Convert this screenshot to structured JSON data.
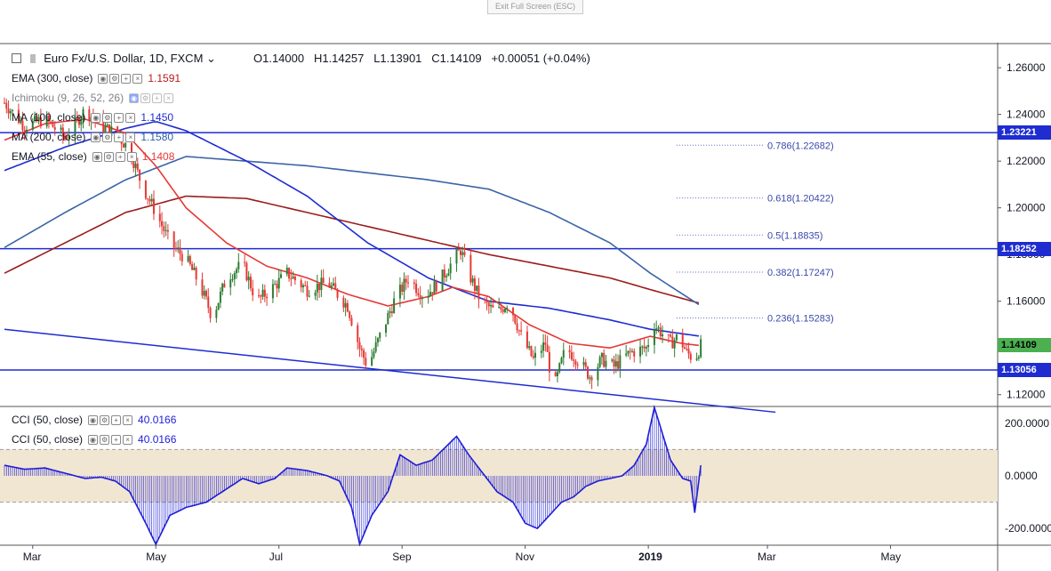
{
  "toolbar": {
    "exit_label": "Exit Full Screen (ESC)"
  },
  "symbol": {
    "title": "Euro Fx/U.S. Dollar, 1D, FXCM",
    "open": "O1.14000",
    "high": "H1.14257",
    "low": "L1.13901",
    "close": "C1.14109",
    "change": "+0.00051 (+0.04%)"
  },
  "indicators": [
    {
      "name": "EMA (300, close)",
      "value": "1.1591",
      "color": "#b71c1c"
    },
    {
      "name": "Ichimoku (9, 26, 52, 26)",
      "value": "",
      "color": "#2962ff"
    },
    {
      "name": "MA (100, close)",
      "value": "1.1450",
      "color": "#1e2cd0"
    },
    {
      "name": "MA (200, close)",
      "value": "1.1580",
      "color": "#2e5fa8"
    },
    {
      "name": "EMA (55, close)",
      "value": "1.1408",
      "color": "#e53935"
    }
  ],
  "oscillators": [
    {
      "name": "CCI (50, close)",
      "value": "40.0166",
      "color": "#1e1ed6"
    },
    {
      "name": "CCI (50, close)",
      "value": "40.0166",
      "color": "#1e1ed6"
    }
  ],
  "price_badges": [
    {
      "label": "1.23221",
      "price": 1.23221,
      "bg": "#1e2cd0",
      "fg": "#ffffff"
    },
    {
      "label": "1.18252",
      "price": 1.18252,
      "bg": "#1e2cd0",
      "fg": "#ffffff"
    },
    {
      "label": "1.14109",
      "price": 1.14109,
      "bg": "#4caf50",
      "fg": "#000000"
    },
    {
      "label": "1.13056",
      "price": 1.13056,
      "bg": "#1e2cd0",
      "fg": "#ffffff"
    }
  ],
  "chart_data": {
    "type": "candlestick",
    "price_axis": {
      "range": [
        1.11,
        1.265
      ],
      "ticks": [
        "1.26000",
        "1.24000",
        "1.22000",
        "1.20000",
        "1.18000",
        "1.16000",
        "1.14000",
        "1.12000"
      ],
      "tick_values": [
        1.26,
        1.24,
        1.22,
        1.2,
        1.18,
        1.16,
        1.14,
        1.12
      ]
    },
    "cci_axis": {
      "range": [
        -260,
        260
      ],
      "ticks": [
        "200.0000",
        "0.0000",
        "-200.0000"
      ],
      "tick_values": [
        200,
        0,
        -200
      ],
      "band": [
        -100,
        100
      ]
    },
    "time_axis": {
      "ticks": [
        "Mar",
        "May",
        "Jul",
        "Sep",
        "Nov",
        "2019",
        "Mar",
        "May"
      ],
      "tick_days": [
        14,
        75,
        136,
        197,
        258,
        319,
        378,
        439
      ]
    },
    "horizontal_levels": [
      1.23221,
      1.18252,
      1.13056
    ],
    "fibonacci": [
      {
        "label": "0.786(1.22682)",
        "price": 1.22682
      },
      {
        "label": "0.618(1.20422)",
        "price": 1.20422
      },
      {
        "label": "0.5(1.18835)",
        "price": 1.18835
      },
      {
        "label": "0.382(1.17247)",
        "price": 1.17247
      },
      {
        "label": "0.236(1.15283)",
        "price": 1.15283
      }
    ],
    "trendline": {
      "start": [
        0,
        1.148
      ],
      "end": [
        382,
        1.1125
      ]
    },
    "price_key_points": [
      [
        0,
        1.245
      ],
      [
        10,
        1.235
      ],
      [
        20,
        1.238
      ],
      [
        30,
        1.23
      ],
      [
        40,
        1.242
      ],
      [
        48,
        1.235
      ],
      [
        55,
        1.232
      ],
      [
        62,
        1.225
      ],
      [
        68,
        1.21
      ],
      [
        75,
        1.198
      ],
      [
        82,
        1.185
      ],
      [
        90,
        1.178
      ],
      [
        95,
        1.17
      ],
      [
        100,
        1.16
      ],
      [
        103,
        1.153
      ],
      [
        110,
        1.17
      ],
      [
        118,
        1.176
      ],
      [
        125,
        1.16
      ],
      [
        132,
        1.165
      ],
      [
        140,
        1.172
      ],
      [
        150,
        1.165
      ],
      [
        160,
        1.168
      ],
      [
        170,
        1.158
      ],
      [
        176,
        1.14
      ],
      [
        180,
        1.132
      ],
      [
        186,
        1.145
      ],
      [
        193,
        1.16
      ],
      [
        200,
        1.17
      ],
      [
        208,
        1.162
      ],
      [
        215,
        1.168
      ],
      [
        222,
        1.177
      ],
      [
        226,
        1.182
      ],
      [
        230,
        1.172
      ],
      [
        236,
        1.16
      ],
      [
        244,
        1.155
      ],
      [
        250,
        1.16
      ],
      [
        256,
        1.145
      ],
      [
        262,
        1.135
      ],
      [
        268,
        1.142
      ],
      [
        272,
        1.122
      ],
      [
        278,
        1.14
      ],
      [
        284,
        1.135
      ],
      [
        290,
        1.128
      ],
      [
        296,
        1.135
      ],
      [
        302,
        1.132
      ],
      [
        310,
        1.138
      ],
      [
        318,
        1.14
      ],
      [
        322,
        1.15
      ],
      [
        326,
        1.146
      ],
      [
        330,
        1.142
      ],
      [
        334,
        1.145
      ],
      [
        338,
        1.138
      ],
      [
        342,
        1.135
      ],
      [
        345,
        1.141
      ]
    ],
    "cci_key_points": [
      [
        0,
        40
      ],
      [
        10,
        25
      ],
      [
        20,
        30
      ],
      [
        30,
        10
      ],
      [
        40,
        -10
      ],
      [
        48,
        -5
      ],
      [
        55,
        -20
      ],
      [
        62,
        -60
      ],
      [
        70,
        -180
      ],
      [
        75,
        -260
      ],
      [
        82,
        -150
      ],
      [
        90,
        -120
      ],
      [
        100,
        -100
      ],
      [
        110,
        -50
      ],
      [
        118,
        -10
      ],
      [
        126,
        -30
      ],
      [
        134,
        -10
      ],
      [
        140,
        30
      ],
      [
        150,
        20
      ],
      [
        160,
        0
      ],
      [
        166,
        -20
      ],
      [
        172,
        -120
      ],
      [
        176,
        -260
      ],
      [
        182,
        -150
      ],
      [
        190,
        -60
      ],
      [
        196,
        80
      ],
      [
        204,
        40
      ],
      [
        212,
        60
      ],
      [
        220,
        120
      ],
      [
        224,
        150
      ],
      [
        230,
        80
      ],
      [
        236,
        20
      ],
      [
        244,
        -60
      ],
      [
        252,
        -100
      ],
      [
        258,
        -180
      ],
      [
        264,
        -200
      ],
      [
        270,
        -150
      ],
      [
        276,
        -100
      ],
      [
        282,
        -80
      ],
      [
        288,
        -40
      ],
      [
        294,
        -20
      ],
      [
        300,
        -10
      ],
      [
        306,
        0
      ],
      [
        312,
        40
      ],
      [
        318,
        120
      ],
      [
        322,
        260
      ],
      [
        326,
        160
      ],
      [
        330,
        60
      ],
      [
        336,
        -10
      ],
      [
        340,
        -20
      ],
      [
        342,
        -140
      ],
      [
        345,
        40
      ]
    ],
    "ma_key_points": {
      "ema300": [
        [
          0,
          1.172
        ],
        [
          30,
          1.185
        ],
        [
          60,
          1.198
        ],
        [
          90,
          1.205
        ],
        [
          120,
          1.204
        ],
        [
          150,
          1.198
        ],
        [
          180,
          1.192
        ],
        [
          210,
          1.186
        ],
        [
          240,
          1.18
        ],
        [
          270,
          1.175
        ],
        [
          300,
          1.17
        ],
        [
          320,
          1.165
        ],
        [
          345,
          1.159
        ]
      ],
      "ma200": [
        [
          0,
          1.183
        ],
        [
          30,
          1.198
        ],
        [
          60,
          1.212
        ],
        [
          90,
          1.222
        ],
        [
          120,
          1.22
        ],
        [
          150,
          1.218
        ],
        [
          180,
          1.215
        ],
        [
          210,
          1.212
        ],
        [
          240,
          1.208
        ],
        [
          270,
          1.198
        ],
        [
          300,
          1.185
        ],
        [
          320,
          1.172
        ],
        [
          345,
          1.158
        ]
      ],
      "ma100": [
        [
          0,
          1.216
        ],
        [
          30,
          1.226
        ],
        [
          60,
          1.234
        ],
        [
          75,
          1.237
        ],
        [
          90,
          1.233
        ],
        [
          120,
          1.22
        ],
        [
          150,
          1.205
        ],
        [
          180,
          1.185
        ],
        [
          210,
          1.17
        ],
        [
          240,
          1.16
        ],
        [
          270,
          1.157
        ],
        [
          300,
          1.152
        ],
        [
          320,
          1.148
        ],
        [
          345,
          1.145
        ]
      ],
      "ema55": [
        [
          0,
          1.229
        ],
        [
          20,
          1.236
        ],
        [
          40,
          1.238
        ],
        [
          60,
          1.232
        ],
        [
          75,
          1.218
        ],
        [
          90,
          1.2
        ],
        [
          110,
          1.185
        ],
        [
          130,
          1.175
        ],
        [
          150,
          1.17
        ],
        [
          170,
          1.163
        ],
        [
          190,
          1.158
        ],
        [
          210,
          1.162
        ],
        [
          222,
          1.166
        ],
        [
          240,
          1.162
        ],
        [
          260,
          1.15
        ],
        [
          280,
          1.142
        ],
        [
          300,
          1.14
        ],
        [
          320,
          1.145
        ],
        [
          335,
          1.142
        ],
        [
          345,
          1.141
        ]
      ]
    }
  }
}
